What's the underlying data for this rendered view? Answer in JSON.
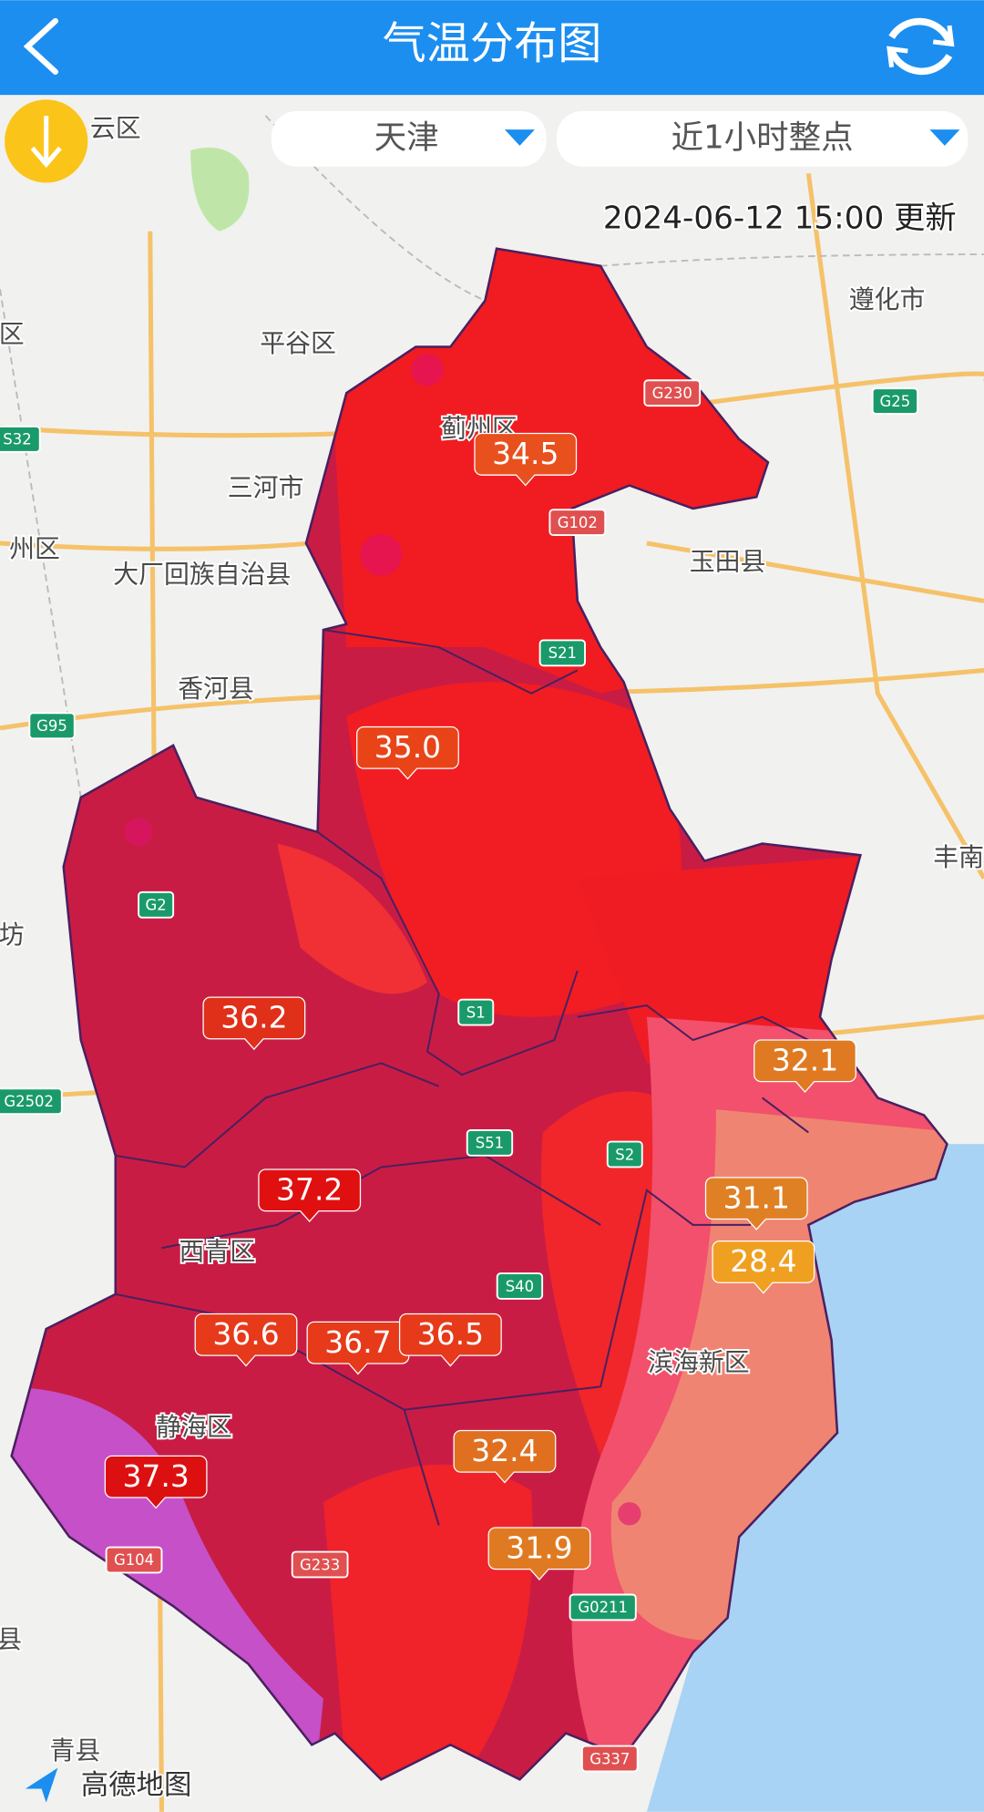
{
  "header": {
    "title": "气温分布图"
  },
  "filters": {
    "region": "天津",
    "period": "近1小时整点"
  },
  "update_time": "2024-06-12 15:00 更新",
  "temperature_markers": [
    {
      "value": "34.5",
      "color": "#e8501e"
    },
    {
      "value": "35.0",
      "color": "#e84418"
    },
    {
      "value": "36.2",
      "color": "#e0301a"
    },
    {
      "value": "37.2",
      "color": "#e01010"
    },
    {
      "value": "36.6",
      "color": "#e63a1a"
    },
    {
      "value": "36.7",
      "color": "#e63a1a"
    },
    {
      "value": "36.5",
      "color": "#e63a1a"
    },
    {
      "value": "37.3",
      "color": "#dc1010"
    },
    {
      "value": "32.4",
      "color": "#e07020"
    },
    {
      "value": "31.9",
      "color": "#e07a22"
    },
    {
      "value": "32.1",
      "color": "#e07a22"
    },
    {
      "value": "31.1",
      "color": "#e08024"
    },
    {
      "value": "28.4",
      "color": "#f0a020"
    }
  ],
  "places": [
    "云区",
    "区",
    "平谷区",
    "蓟州区",
    "三河市",
    "州区",
    "大厂回族自治县",
    "玉田县",
    "遵化市",
    "香河县",
    "丰南",
    "坊",
    "西青区",
    "静海区",
    "滨海新区",
    "县",
    "青县"
  ],
  "roads": [
    {
      "label": "G230",
      "color": "#e05050"
    },
    {
      "label": "G25",
      "color": "#1a9a6a"
    },
    {
      "label": "S32",
      "color": "#1a9a6a"
    },
    {
      "label": "G102",
      "color": "#e05050"
    },
    {
      "label": "S21",
      "color": "#1a9a6a"
    },
    {
      "label": "G95",
      "color": "#1a9a6a"
    },
    {
      "label": "G2",
      "color": "#1a9a6a"
    },
    {
      "label": "S1",
      "color": "#1a9a6a"
    },
    {
      "label": "G2502",
      "color": "#1a9a6a"
    },
    {
      "label": "S51",
      "color": "#1a9a6a"
    },
    {
      "label": "S2",
      "color": "#1a9a6a"
    },
    {
      "label": "S40",
      "color": "#1a9a6a"
    },
    {
      "label": "G104",
      "color": "#e05050"
    },
    {
      "label": "G233",
      "color": "#e05050"
    },
    {
      "label": "G0211",
      "color": "#1a9a6a"
    },
    {
      "label": "G337",
      "color": "#e05050"
    }
  ],
  "attribution": "高德地图"
}
